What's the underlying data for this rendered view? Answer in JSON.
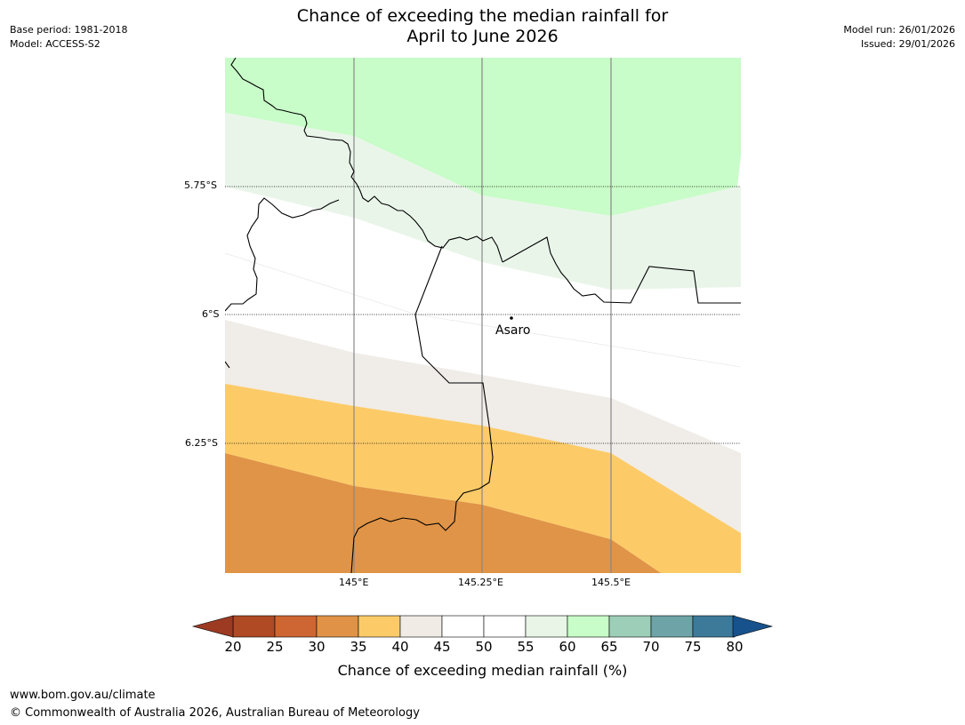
{
  "title": {
    "line1": "Chance of exceeding the median rainfall for",
    "line2": "April to June 2026"
  },
  "meta": {
    "base_period": "Base period: 1981-2018",
    "model": "Model: ACCESS-S2",
    "model_run": "Model run: 26/01/2026",
    "issued": "Issued: 29/01/2026"
  },
  "map": {
    "lat_labels": [
      "5.75°S",
      "6°S",
      "6.25°S"
    ],
    "lon_labels": [
      "145°E",
      "145.25°E",
      "145.5°E"
    ],
    "place": "Asaro"
  },
  "colorbar": {
    "title": "Chance of exceeding median rainfall (%)",
    "ticks": [
      "20",
      "25",
      "30",
      "35",
      "40",
      "45",
      "50",
      "55",
      "60",
      "65",
      "70",
      "75",
      "80"
    ],
    "colors": {
      "lt20": "#9c3a22",
      "20-25": "#b04a24",
      "25-30": "#cd6633",
      "30-35": "#e09347",
      "35-40": "#fccb68",
      "40-45": "#f0ebe5",
      "45-50": "#ffffff",
      "50-55": "#ffffff",
      "55-60": "#e8f5e7",
      "60-65": "#c8fcc8",
      "65-70": "#9dcfb8",
      "70-75": "#6ea4a7",
      "75-80": "#3d7a9a",
      "gt80": "#17528c"
    }
  },
  "footer": {
    "url": "www.bom.gov.au/climate",
    "copyright": "© Commonwealth of Australia 2026, Australian Bureau of Meteorology"
  }
}
